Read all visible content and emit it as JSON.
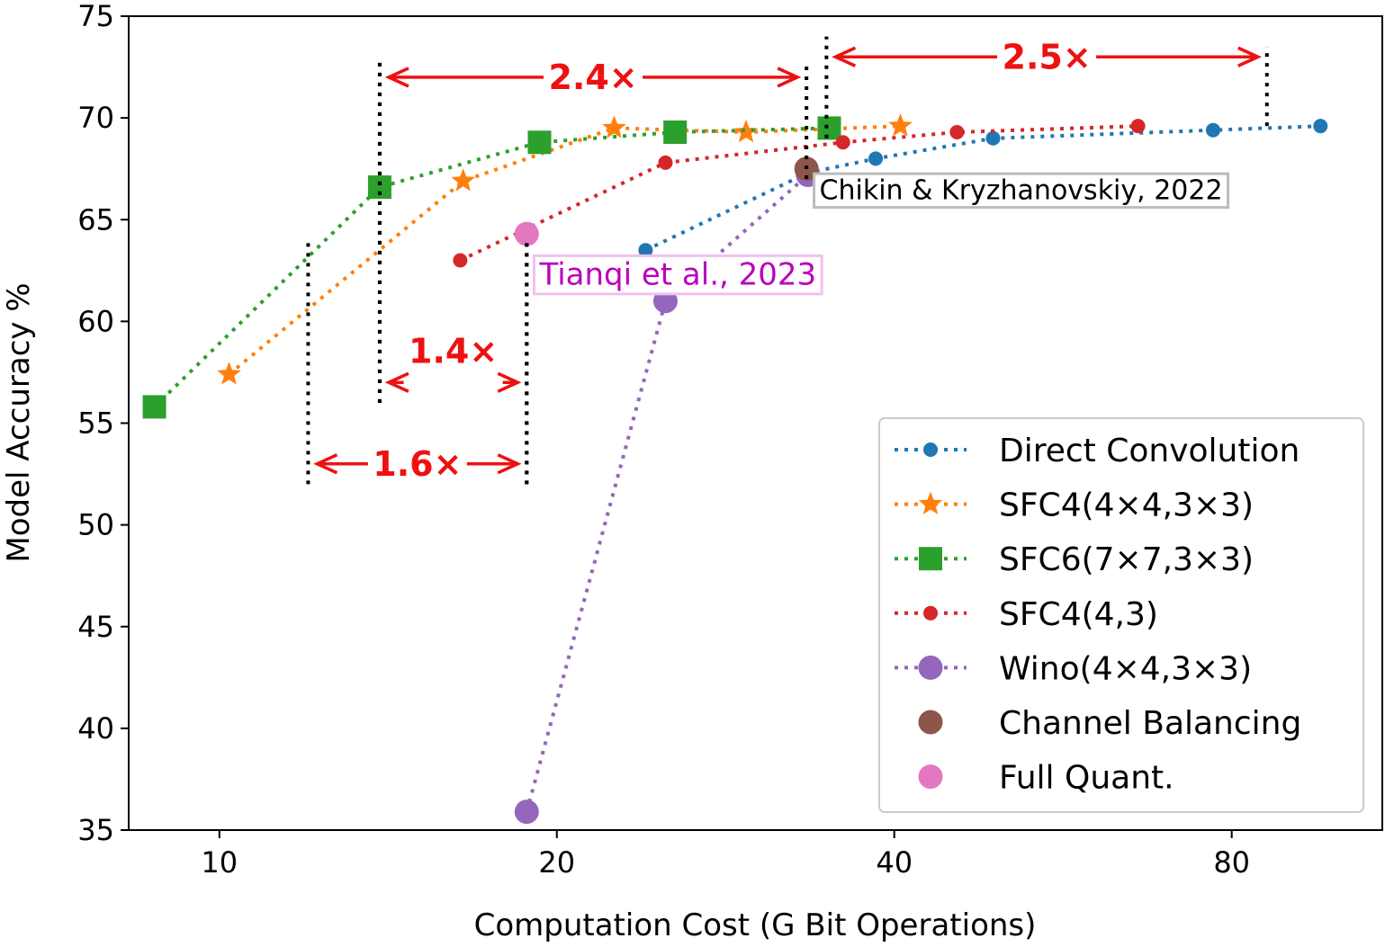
{
  "chart_data": {
    "type": "line",
    "title": "",
    "xlabel": "Computation Cost (G Bit Operations)",
    "ylabel": "Model Accuracy %",
    "xscale": "log2",
    "xlim": [
      8.3,
      109
    ],
    "ylim": [
      35,
      75
    ],
    "x_ticks": [
      10,
      20,
      40,
      80
    ],
    "y_ticks": [
      35,
      40,
      45,
      50,
      55,
      60,
      65,
      70,
      75
    ],
    "grid": false,
    "legend_position": "lower-right",
    "series": [
      {
        "name": "Direct Convolution",
        "color": "#1f77b4",
        "marker": "dot",
        "line": "dotted",
        "x": [
          24.0,
          33.5,
          38.5,
          49.0,
          77.0,
          96.0
        ],
        "y": [
          63.5,
          67.3,
          68.0,
          69.0,
          69.4,
          69.6
        ]
      },
      {
        "name": "SFC4(4×4,3×3)",
        "color": "#ff7f0e",
        "marker": "star",
        "line": "dotted",
        "x": [
          10.2,
          16.5,
          22.5,
          29.5,
          40.5
        ],
        "y": [
          57.4,
          66.9,
          69.5,
          69.3,
          69.6
        ]
      },
      {
        "name": "SFC6(7×7,3×3)",
        "color": "#2ca02c",
        "marker": "square",
        "line": "dotted",
        "x": [
          8.75,
          13.9,
          19.3,
          25.5,
          35.0
        ],
        "y": [
          55.8,
          66.6,
          68.8,
          69.3,
          69.5
        ]
      },
      {
        "name": "SFC4(4,3)",
        "color": "#d62728",
        "marker": "dot",
        "line": "dotted",
        "x": [
          16.4,
          25.0,
          36.0,
          45.5,
          66.0
        ],
        "y": [
          63.0,
          67.8,
          68.8,
          69.3,
          69.6
        ]
      },
      {
        "name": "Wino(4×4,3×3)",
        "color": "#9467bd",
        "marker": "circle",
        "line": "dotted",
        "x": [
          18.8,
          25.0,
          33.5
        ],
        "y": [
          35.9,
          61.0,
          67.2
        ]
      },
      {
        "name": "Channel Balancing",
        "color": "#8c564b",
        "marker": "circle",
        "line": "none",
        "x": [
          33.4
        ],
        "y": [
          67.5
        ]
      },
      {
        "name": "Full Quant.",
        "color": "#e377c2",
        "marker": "circle",
        "line": "none",
        "x": [
          18.8
        ],
        "y": [
          64.3
        ]
      }
    ],
    "annotations": [
      {
        "text": "Chikin & Kryzhanovskiy, 2022",
        "color": "#000000",
        "anchor_x": 34.3,
        "anchor_y": 66.0
      },
      {
        "text": "Tianqi et al., 2023",
        "color": "#bb00bb",
        "anchor_x": 19.3,
        "anchor_y": 61.8
      }
    ],
    "ratio_markers": [
      {
        "label": "2.4×",
        "x_from": 13.9,
        "x_to": 33.4,
        "y": 72.0,
        "guide_from": [
          56.0,
          73.0
        ],
        "guide_to": [
          67.0,
          72.8
        ]
      },
      {
        "label": "2.5×",
        "x_from": 34.8,
        "x_to": 86.0,
        "y": 73.0,
        "guide_from": [
          69.0,
          74.0
        ],
        "guide_to": [
          69.6,
          73.5
        ]
      },
      {
        "label": "1.4×",
        "x_from": 13.9,
        "x_to": 18.8,
        "y": 57.0,
        "guide_from": [
          56.0,
          73.0
        ],
        "guide_to": [
          52.0,
          64.0
        ]
      },
      {
        "label": "1.6×",
        "x_from": 12.0,
        "x_to": 18.8,
        "y": 53.0,
        "guide_from": [
          52.0,
          64.0
        ],
        "guide_to": [
          52.0,
          64.0
        ]
      }
    ]
  }
}
